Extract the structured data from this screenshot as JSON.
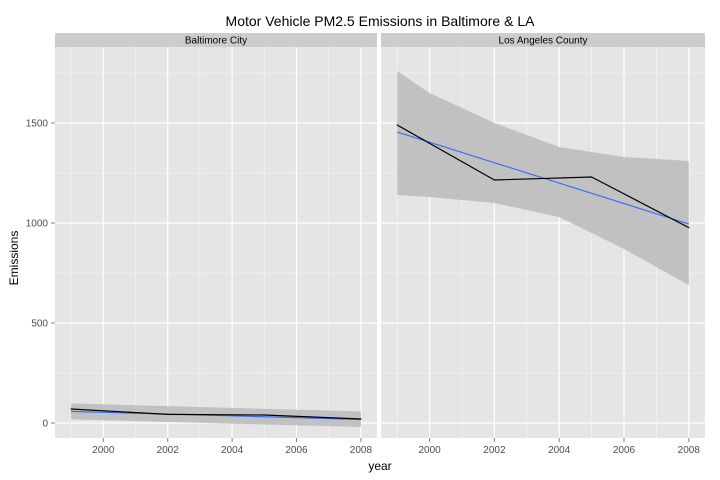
{
  "chart_data": {
    "type": "line",
    "title": "Motor Vehicle PM2.5 Emissions in Baltimore & LA",
    "xlabel": "year",
    "ylabel": "Emissions",
    "xlim": [
      1998.5,
      2008.5
    ],
    "ylim": [
      -75,
      1880
    ],
    "x_ticks": [
      2000,
      2002,
      2004,
      2006,
      2008
    ],
    "y_ticks": [
      0,
      500,
      1000,
      1500
    ],
    "grid": true,
    "panel_background": "#e5e5e5",
    "strip_background": "#cccccc",
    "observed_line_color": "#000000",
    "trend_line_color": "#3366ff",
    "confidence_band_color": "#bfbfbf",
    "facets": [
      {
        "name": "Baltimore City",
        "observed": {
          "x": [
            1999,
            2002,
            2005,
            2008
          ],
          "y": [
            70,
            43,
            40,
            20
          ]
        },
        "trend": {
          "x": [
            1999,
            2008
          ],
          "y": [
            58,
            18
          ]
        },
        "band": {
          "x": [
            1999,
            2008
          ],
          "upper": [
            98,
            58
          ],
          "lower": [
            18,
            -20
          ]
        }
      },
      {
        "name": "Los Angeles County",
        "observed": {
          "x": [
            1999,
            2002,
            2005,
            2008
          ],
          "y": [
            1490,
            1215,
            1230,
            977
          ]
        },
        "trend": {
          "x": [
            1999,
            2008
          ],
          "y": [
            1455,
            995
          ]
        },
        "band": {
          "x": [
            1999,
            2000,
            2002,
            2004,
            2006,
            2008
          ],
          "upper": [
            1760,
            1650,
            1500,
            1380,
            1330,
            1310
          ],
          "lower": [
            1140,
            1130,
            1100,
            1030,
            870,
            690
          ]
        }
      }
    ]
  }
}
